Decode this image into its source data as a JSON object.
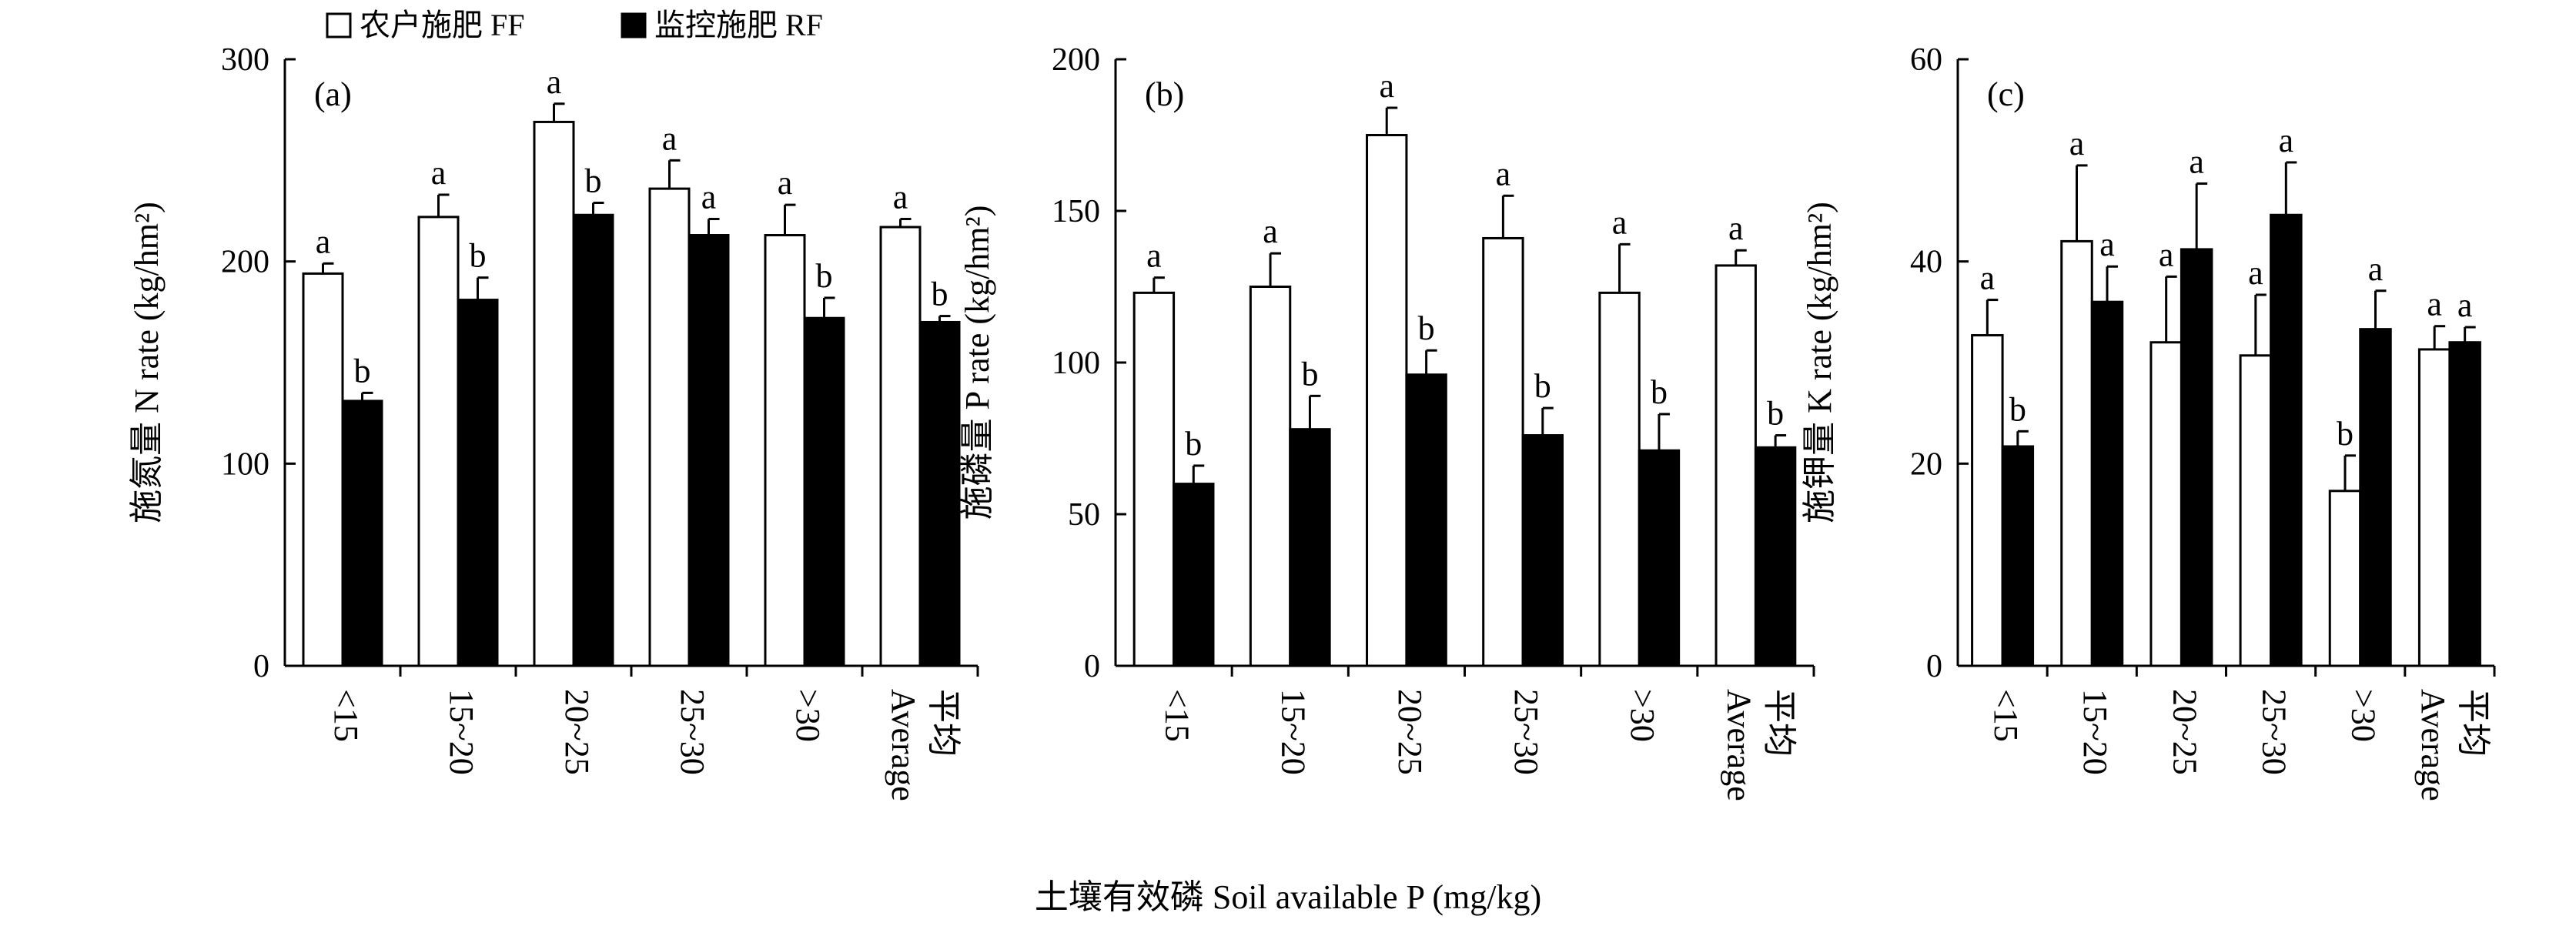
{
  "legend": {
    "items": [
      {
        "label": "农户施肥 FF",
        "color": "#ffffff"
      },
      {
        "label": "监控施肥 RF",
        "color": "#000000"
      }
    ]
  },
  "x_axis_title": "土壤有效磷 Soil available P (mg/kg)",
  "chart_data": [
    {
      "type": "bar",
      "panel_label": "(a)",
      "ylabel": "施氮量 N rate (kg/hm²)",
      "ylim": [
        0,
        300
      ],
      "yticks": [
        "0",
        "100",
        "200",
        "300"
      ],
      "categories": [
        "<15",
        "15~20",
        "20~25",
        "25~30",
        ">30",
        "平均 Average"
      ],
      "category_labels": [
        [
          "<15"
        ],
        [
          "15~20"
        ],
        [
          "20~25"
        ],
        [
          "25~30"
        ],
        [
          ">30"
        ],
        [
          "平均",
          "Average"
        ]
      ],
      "series": [
        {
          "name": "农户施肥 FF",
          "color": "#ffffff",
          "values": [
            194,
            222,
            269,
            236,
            213,
            217
          ],
          "errors": [
            5,
            11,
            9,
            14,
            15,
            4
          ],
          "letters": [
            "a",
            "a",
            "a",
            "a",
            "a",
            "a"
          ]
        },
        {
          "name": "监控施肥 RF",
          "color": "#000000",
          "values": [
            131,
            181,
            223,
            213,
            172,
            170
          ],
          "errors": [
            4,
            11,
            6,
            8,
            10,
            3
          ],
          "letters": [
            "b",
            "b",
            "b",
            "a",
            "b",
            "b"
          ]
        }
      ]
    },
    {
      "type": "bar",
      "panel_label": "(b)",
      "ylabel": "施磷量 P rate (kg/hm²)",
      "ylim": [
        0,
        200
      ],
      "yticks": [
        "0",
        "50",
        "100",
        "150",
        "200"
      ],
      "categories": [
        "<15",
        "15~20",
        "20~25",
        "25~30",
        ">30",
        "平均 Average"
      ],
      "category_labels": [
        [
          "<15"
        ],
        [
          "15~20"
        ],
        [
          "20~25"
        ],
        [
          "25~30"
        ],
        [
          ">30"
        ],
        [
          "平均",
          "Average"
        ]
      ],
      "series": [
        {
          "name": "农户施肥 FF",
          "color": "#ffffff",
          "values": [
            123,
            125,
            175,
            141,
            123,
            132
          ],
          "errors": [
            5,
            11,
            9,
            14,
            16,
            5
          ],
          "letters": [
            "a",
            "a",
            "a",
            "a",
            "a",
            "a"
          ]
        },
        {
          "name": "监控施肥 RF",
          "color": "#000000",
          "values": [
            60,
            78,
            96,
            76,
            71,
            72
          ],
          "errors": [
            6,
            11,
            8,
            9,
            12,
            4
          ],
          "letters": [
            "b",
            "b",
            "b",
            "b",
            "b",
            "b"
          ]
        }
      ]
    },
    {
      "type": "bar",
      "panel_label": "(c)",
      "ylabel": "施钾量 K rate (kg/hm²)",
      "ylim": [
        0,
        60
      ],
      "yticks": [
        "0",
        "20",
        "40",
        "60"
      ],
      "categories": [
        "<15",
        "15~20",
        "20~25",
        "25~30",
        ">30",
        "平均 Average"
      ],
      "category_labels": [
        [
          "<15"
        ],
        [
          "15~20"
        ],
        [
          "20~25"
        ],
        [
          "25~30"
        ],
        [
          ">30"
        ],
        [
          "平均",
          "Average"
        ]
      ],
      "series": [
        {
          "name": "农户施肥 FF",
          "color": "#ffffff",
          "values": [
            32.7,
            42,
            32,
            30.7,
            17.3,
            31.3
          ],
          "errors": [
            3.5,
            7.5,
            6.5,
            6,
            3.5,
            2.3
          ],
          "letters": [
            "a",
            "a",
            "a",
            "a",
            "b",
            "a"
          ]
        },
        {
          "name": "监控施肥 RF",
          "color": "#000000",
          "values": [
            21.7,
            36,
            41.2,
            44.6,
            33.3,
            32
          ],
          "errors": [
            1.5,
            3.5,
            6.5,
            5.2,
            3.8,
            1.5
          ],
          "letters": [
            "b",
            "a",
            "a",
            "a",
            "a",
            "a"
          ]
        }
      ]
    }
  ]
}
